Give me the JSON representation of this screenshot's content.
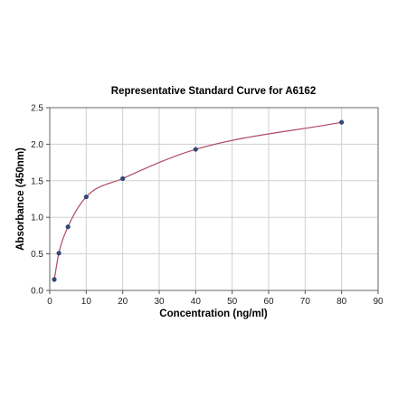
{
  "chart_data": {
    "type": "scatter",
    "title": "Representative Standard Curve for A6162",
    "xlabel": "Concentration (ng/ml)",
    "ylabel": "Absorbance (450nm)",
    "xlim": [
      0,
      90
    ],
    "ylim": [
      0,
      2.5
    ],
    "x_ticks": [
      0,
      10,
      20,
      30,
      40,
      50,
      60,
      70,
      80,
      90
    ],
    "y_ticks": [
      0.0,
      0.5,
      1.0,
      1.5,
      2.0,
      2.5
    ],
    "x_tick_labels": [
      "0",
      "10",
      "20",
      "30",
      "40",
      "50",
      "60",
      "70",
      "80",
      "90"
    ],
    "y_tick_labels": [
      "0.0",
      "0.5",
      "1.0",
      "1.5",
      "2.0",
      "2.5"
    ],
    "grid": true,
    "series": [
      {
        "x": [
          1.25,
          2.5,
          5,
          10,
          20,
          40,
          80
        ],
        "y": [
          0.15,
          0.51,
          0.87,
          1.28,
          1.53,
          1.93,
          2.3
        ],
        "marker_color": "#2f4a7a",
        "fit_line_color": "#b04a63"
      }
    ]
  }
}
